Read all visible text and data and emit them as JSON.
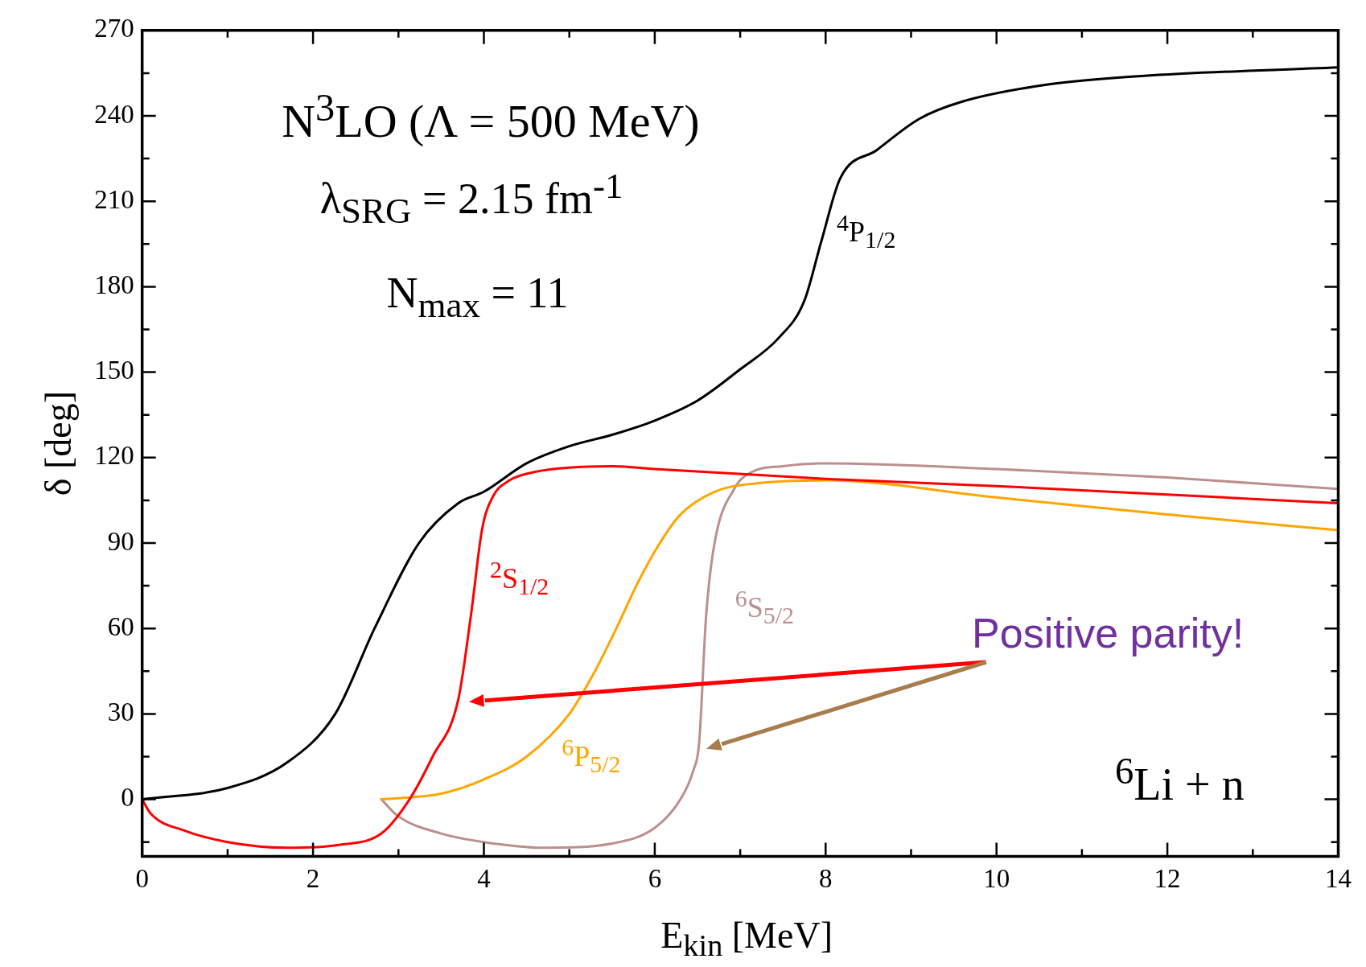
{
  "chart_data": {
    "type": "line",
    "xlabel": "E$_{kin}$ [MeV]",
    "ylabel": "δ [deg]",
    "xlim": [
      0,
      14
    ],
    "xticks": [
      0,
      {
        "value": 1,
        "label": null
      },
      2,
      {
        "value": 3,
        "label": null
      },
      4,
      {
        "value": 5,
        "label": null
      },
      6,
      {
        "value": 7,
        "label": null
      },
      8,
      {
        "value": 9,
        "label": null
      },
      10,
      {
        "value": 11,
        "label": null
      },
      12,
      {
        "value": 13,
        "label": null
      },
      14
    ],
    "ylim": [
      -20,
      270
    ],
    "yticks": [
      {
        "value": -15,
        "label": null
      },
      0,
      {
        "value": 15,
        "label": null
      },
      30,
      {
        "value": 45,
        "label": null
      },
      60,
      {
        "value": 75,
        "label": null
      },
      90,
      {
        "value": 105,
        "label": null
      },
      120,
      {
        "value": 135,
        "label": null
      },
      150,
      {
        "value": 165,
        "label": null
      },
      180,
      {
        "value": 195,
        "label": null
      },
      210,
      {
        "value": 225,
        "label": null
      },
      240,
      {
        "value": 255,
        "label": null
      },
      270
    ],
    "grid": false,
    "legend": false,
    "marker": "none",
    "line_style": "solid",
    "series": [
      {
        "name": "$^{4}$P$_{1/2}$",
        "color": "#000000",
        "x": [
          0,
          1,
          1.7,
          2.26,
          2.72,
          3.24,
          3.7,
          4,
          4.5,
          5,
          5.5,
          6,
          6.5,
          7,
          7.45,
          7.75,
          7.95,
          8.17,
          8.6,
          9.1,
          9.6,
          10.6,
          11.7,
          14
        ],
        "values": [
          0,
          4,
          13,
          30,
          60,
          90,
          104,
          108,
          118,
          124,
          128,
          133,
          140,
          151,
          162,
          175,
          196,
          218,
          228,
          239,
          245,
          251,
          254,
          257
        ]
      },
      {
        "name": "$^{2}$S$_{1/2}$",
        "color": "#ff0000",
        "x": [
          0,
          0.1,
          0.5,
          1,
          1.7,
          2.3,
          2.8,
          3.13,
          3.4,
          3.7,
          3.85,
          3.98,
          4.1,
          4.3,
          4.6,
          5,
          5.5,
          6,
          8,
          10,
          12,
          14
        ],
        "values": [
          0,
          -5,
          -11,
          -15,
          -17,
          -16,
          -12,
          0,
          15,
          35,
          65,
          95,
          106,
          112,
          115,
          116.5,
          117,
          116,
          112.5,
          110,
          107,
          104
        ]
      },
      {
        "name": "$^{6}$P$_{5/2}$",
        "color": "#ffa500",
        "x": [
          2.8,
          3.5,
          4,
          4.5,
          5,
          5.3,
          5.55,
          5.8,
          6.06,
          6.3,
          6.7,
          7.2,
          8,
          10,
          12,
          14
        ],
        "values": [
          0,
          2,
          7,
          15,
          30,
          45,
          60,
          76,
          90,
          100,
          108,
          111,
          112,
          106,
          100,
          94.5
        ]
      },
      {
        "name": "$^{6}$S$_{5/2}$",
        "color": "#bc8f8f",
        "x": [
          2.8,
          3,
          3.5,
          4,
          4.7,
          5.5,
          6,
          6.3,
          6.45,
          6.52,
          6.6,
          6.7,
          6.93,
          7.14,
          7.5,
          8,
          10,
          12,
          14
        ],
        "values": [
          0,
          -6,
          -12,
          -15,
          -17,
          -15.5,
          -10,
          0,
          10,
          20,
          64,
          90,
          109,
          115,
          117,
          118,
          116,
          113,
          109
        ]
      }
    ],
    "annotations": [
      "N$^{3}$LO (Λ = 500 MeV)",
      "λ$_{SRG}$ = 2.15 fm$^{-1}$",
      "N$_{max}$ = 11",
      "Positive parity!",
      "$^{6}$Li + n"
    ]
  }
}
